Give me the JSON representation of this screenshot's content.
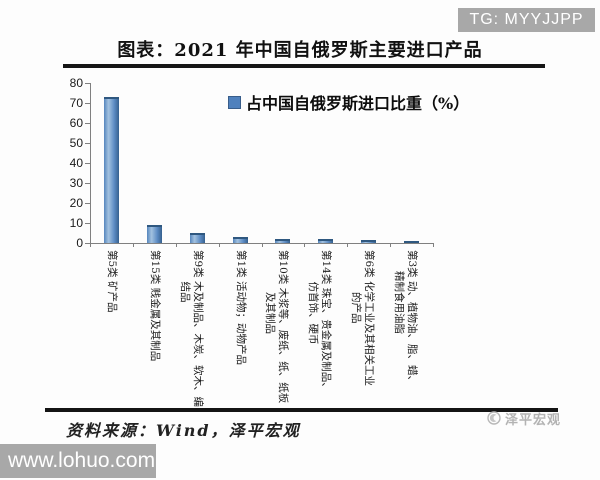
{
  "header": {
    "badge": "TG: MYYJJPP",
    "badge_bg": "#a8a8a8"
  },
  "chart_data": {
    "type": "bar",
    "title": "图表：2021 年中国自俄罗斯主要进口产品",
    "legend": "占中国自俄罗斯进口比重（%）",
    "legend_position": "top-center",
    "categories": [
      "第5类 矿产品",
      "第15类 贱金属及其制品",
      "第9类 木及制品、木炭、软木、编结品",
      "第1类 活动物；动物产品",
      "第10类 木浆等、废纸、纸、纸板及其制品",
      "第14类 珠宝、贵金属及制品、仿首饰、硬币",
      "第6类 化学工业及其相关工业的产品",
      "第3类 动、植物油、脂、蜡、精制食用油脂"
    ],
    "categories_display": [
      "第5类 矿产品",
      "第15类 贱金属及其制品",
      "第9类 木及制品、木炭、软木、编\n　　　结品",
      "第1类 活动物；动物产品",
      "第10类 木浆等、废纸、纸、纸板\n　　　　及其制品",
      "第14类 珠宝、贵金属及制品、\n　　　仿首饰、硬币",
      "第6类 化学工业及其相关工业\n　　　　的产品",
      "第3类 动、植物油、脂、蜡、\n　　精制食用油脂"
    ],
    "values": [
      73,
      9,
      5,
      3,
      2,
      2,
      1.7,
      1.2
    ],
    "ylim": [
      0,
      80
    ],
    "yticks": [
      0,
      10,
      20,
      30,
      40,
      50,
      60,
      70,
      80
    ],
    "grid": false,
    "bar_color": "#4f81bd",
    "axis_color": "#808080"
  },
  "footer": {
    "source": "资料来源：Wind，泽平宏观",
    "logo_text": "泽平宏观"
  },
  "watermark": "www.lohuo.com"
}
